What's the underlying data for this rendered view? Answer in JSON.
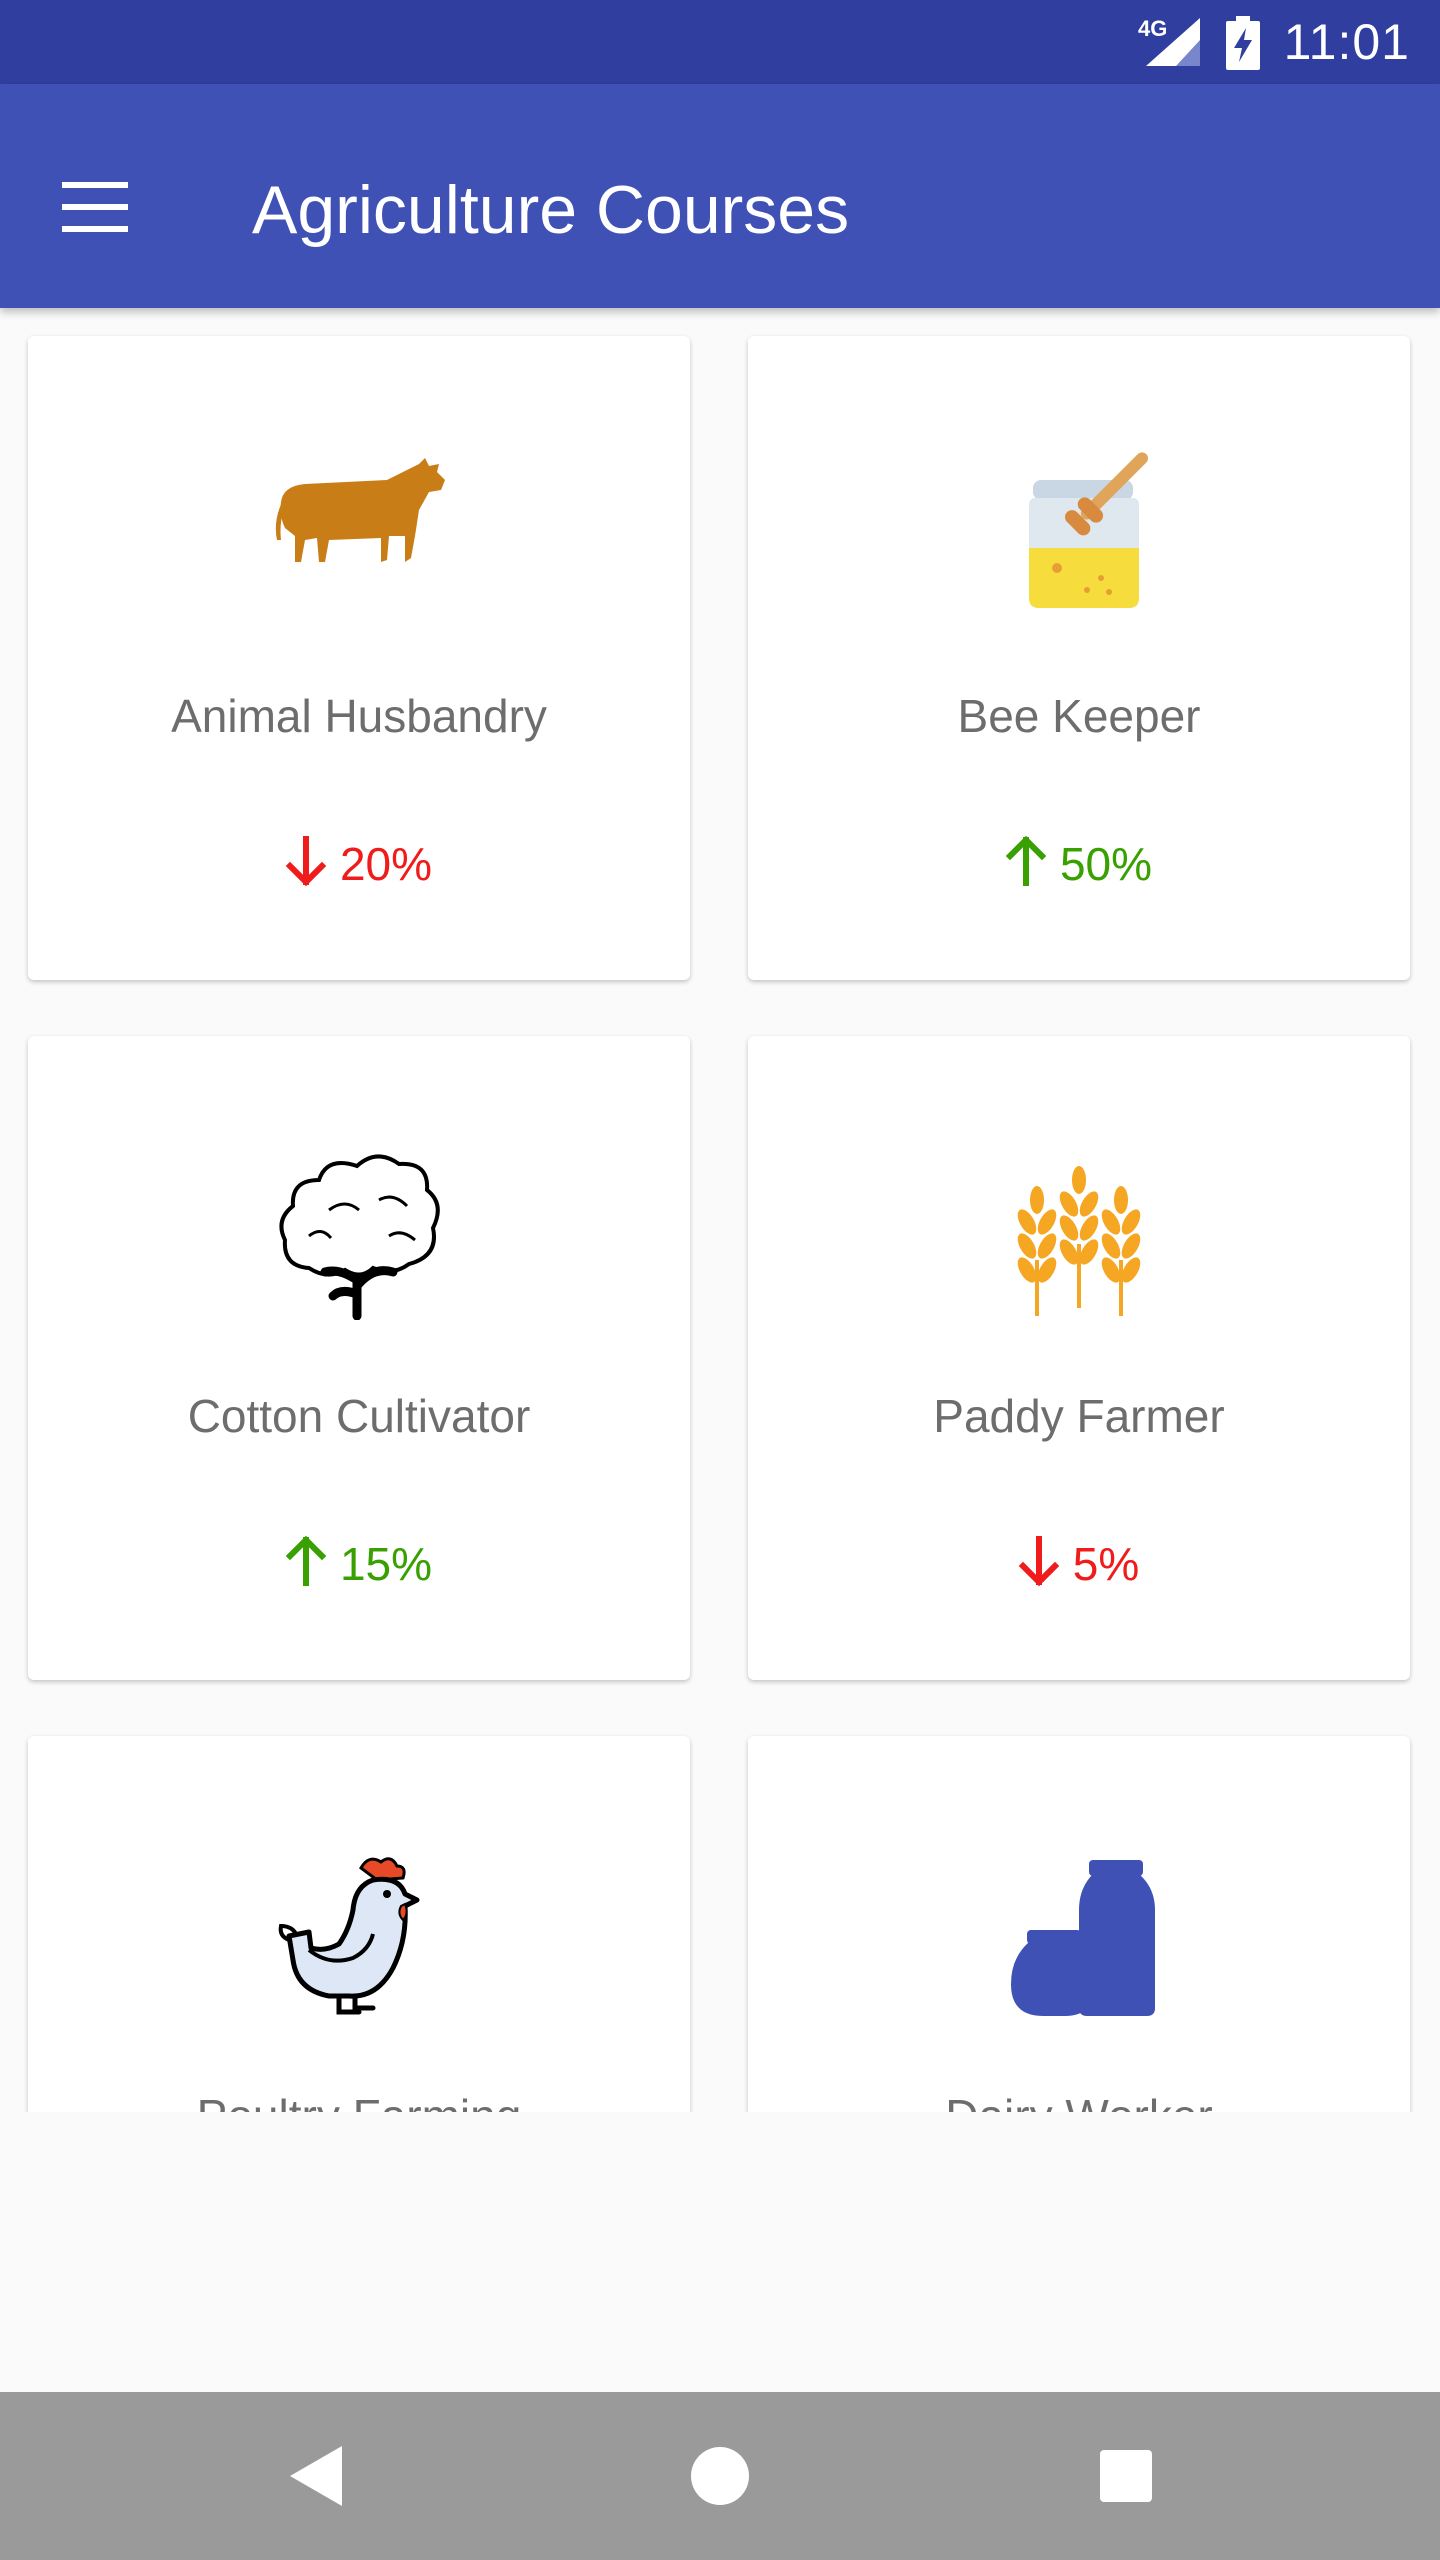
{
  "status_bar": {
    "network": "4G",
    "time": "11:01"
  },
  "app_bar": {
    "title": "Agriculture Courses",
    "menu_icon": "hamburger-menu-icon"
  },
  "courses": [
    {
      "name": "Animal Husbandry",
      "icon": "cow-icon",
      "trend": "down",
      "change": "20%",
      "color": "#c87d17"
    },
    {
      "name": "Bee Keeper",
      "icon": "honey-jar-icon",
      "trend": "up",
      "change": "50%",
      "color": "#f5d642"
    },
    {
      "name": "Cotton Cultivator",
      "icon": "cotton-plant-icon",
      "trend": "up",
      "change": "15%",
      "color": "#000000"
    },
    {
      "name": "Paddy Farmer",
      "icon": "wheat-icon",
      "trend": "down",
      "change": "5%",
      "color": "#f5a623"
    },
    {
      "name": "Poultry Farming",
      "icon": "chicken-icon",
      "trend": "",
      "change": "",
      "color": "#e84a27"
    },
    {
      "name": "Dairy Worker",
      "icon": "milk-jars-icon",
      "trend": "",
      "change": "",
      "color": "#3f51b5"
    }
  ],
  "colors": {
    "primary": "#3f51b5",
    "primary_dark": "#303f9f",
    "trend_down": "#f01b1b",
    "trend_up": "#38a000"
  },
  "nav_bar": {
    "back": "back-icon",
    "home": "home-icon",
    "recents": "recents-icon"
  }
}
